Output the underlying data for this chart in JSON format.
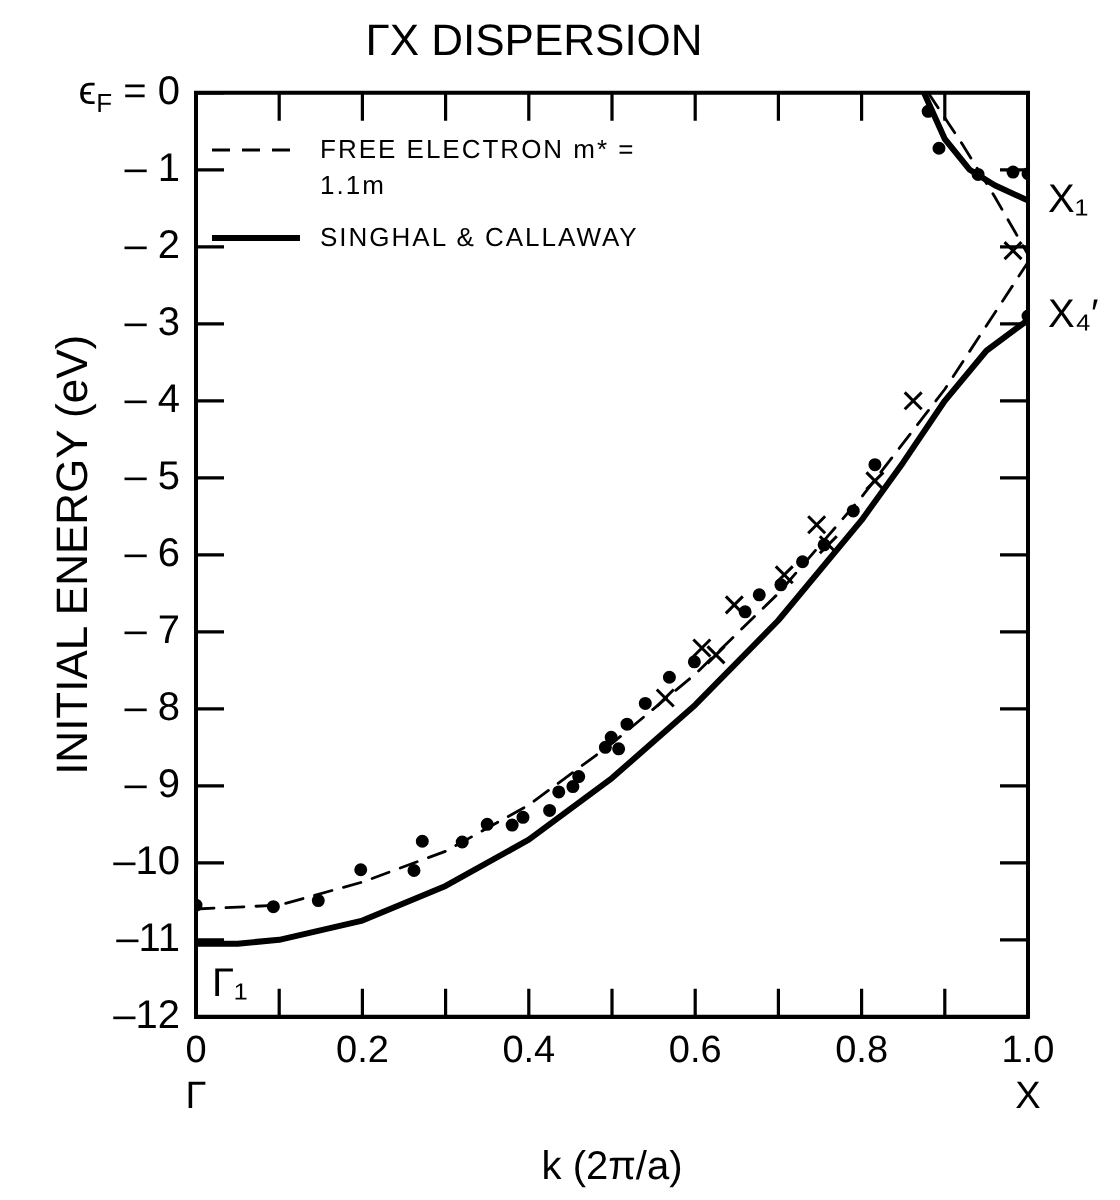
{
  "chart_data": {
    "type": "line",
    "title": "ΓX DISPERSION",
    "xlabel": "k (2π/a)",
    "ylabel": "INITIAL ENERGY (eV)",
    "xlim": [
      0,
      1
    ],
    "ylim": [
      -12,
      0
    ],
    "xticks": [
      {
        "value": 0,
        "label": "0\nΓ"
      },
      {
        "value": 0.1,
        "label": null
      },
      0.2,
      {
        "value": 0.3,
        "label": null
      },
      0.4,
      {
        "value": 0.5,
        "label": null
      },
      0.6,
      {
        "value": 0.7,
        "label": null
      },
      0.8,
      {
        "value": 0.9,
        "label": null
      },
      {
        "value": 1,
        "label": "1.0\nX"
      }
    ],
    "yticks": [
      {
        "value": 0,
        "label": "ϵ$_{F}$ = 0"
      },
      {
        "value": -1,
        "label": "– 1"
      },
      {
        "value": -2,
        "label": "– 2"
      },
      {
        "value": -3,
        "label": "– 3"
      },
      {
        "value": -4,
        "label": "– 4"
      },
      {
        "value": -5,
        "label": "– 5"
      },
      {
        "value": -6,
        "label": "– 6"
      },
      {
        "value": -7,
        "label": "– 7"
      },
      {
        "value": -8,
        "label": "– 8"
      },
      {
        "value": -9,
        "label": "– 9"
      },
      {
        "value": -10,
        "label": "–10"
      },
      {
        "value": -11,
        "label": "–11"
      },
      {
        "value": -12,
        "label": "–12"
      }
    ],
    "grid": false,
    "legend": "top left",
    "annotations": [
      {
        "text": "X₁",
        "x": 1,
        "y": -1.4
      },
      {
        "text": "X₄′",
        "x": 1,
        "y": -2.9
      },
      "Γ₁"
    ],
    "series": [
      {
        "name": "FREE ELECTRON m* = 1.1m",
        "line_style": "dashed",
        "marker": "none",
        "color": "#000000",
        "x": [
          0,
          0.1,
          0.2,
          0.3,
          0.4,
          0.5,
          0.6,
          0.7,
          0.8,
          0.9,
          1.0
        ],
        "values": [
          -10.6,
          -10.55,
          -10.25,
          -9.85,
          -9.25,
          -8.45,
          -7.55,
          -6.5,
          -5.25,
          -3.85,
          -2.2
        ]
      },
      {
        "line_style": "dashed",
        "marker": "none",
        "color": "#000000",
        "x": [
          0.88,
          0.92,
          0.96,
          1.0
        ],
        "values": [
          0,
          -0.65,
          -1.35,
          -2.1
        ]
      },
      {
        "name": "SINGHAL & CALLAWAY",
        "line_style": "solid",
        "marker": "none",
        "color": "#000000",
        "x": [
          0,
          0.05,
          0.1,
          0.2,
          0.3,
          0.4,
          0.5,
          0.6,
          0.7,
          0.8,
          0.85,
          0.9,
          0.95,
          1.0
        ],
        "values": [
          -11.05,
          -11.05,
          -11.0,
          -10.75,
          -10.3,
          -9.7,
          -8.9,
          -7.95,
          -6.85,
          -5.55,
          -4.8,
          -4.0,
          -3.35,
          -2.95
        ]
      },
      {
        "line_style": "solid",
        "marker": "none",
        "color": "#000000",
        "x": [
          0.875,
          0.9,
          0.93,
          0.96,
          1.0
        ],
        "values": [
          0,
          -0.6,
          -1.0,
          -1.2,
          -1.4
        ]
      },
      {
        "type": "scatter",
        "marker": "circle",
        "color": "#000000",
        "x": [
          0,
          0.093,
          0.147,
          0.198,
          0.262,
          0.272,
          0.32,
          0.35,
          0.38,
          0.393,
          0.425,
          0.436,
          0.453,
          0.46,
          0.492,
          0.499,
          0.508,
          0.518,
          0.54,
          0.569,
          0.599,
          0.66,
          0.677,
          0.703,
          0.729,
          0.755,
          0.79,
          0.816,
          0.88,
          0.893,
          0.94,
          0.982
        ],
        "values": [
          -10.55,
          -10.57,
          -10.49,
          -10.09,
          -10.1,
          -9.72,
          -9.73,
          -9.5,
          -9.51,
          -9.41,
          -9.32,
          -9.08,
          -9.01,
          -8.88,
          -8.5,
          -8.37,
          -8.52,
          -8.2,
          -7.93,
          -7.59,
          -7.39,
          -6.74,
          -6.52,
          -6.39,
          -6.09,
          -5.87,
          -5.43,
          -4.83,
          -0.24,
          -0.72,
          -1.06,
          -1.03
        ]
      },
      {
        "type": "scatter",
        "marker": "cross",
        "color": "#000000",
        "x": [
          0.564,
          0.608,
          0.625,
          0.647,
          0.707,
          0.746,
          0.76,
          0.816,
          0.862,
          0.982
        ],
        "values": [
          -7.86,
          -7.21,
          -7.3,
          -6.65,
          -6.26,
          -5.61,
          -5.87,
          -5.04,
          -4.0,
          -2.05
        ]
      },
      {
        "type": "scatter",
        "marker": "circle",
        "color": "#000000",
        "x": [
          1.0,
          1.0
        ],
        "values": [
          -1.05,
          -2.9
        ]
      }
    ]
  }
}
